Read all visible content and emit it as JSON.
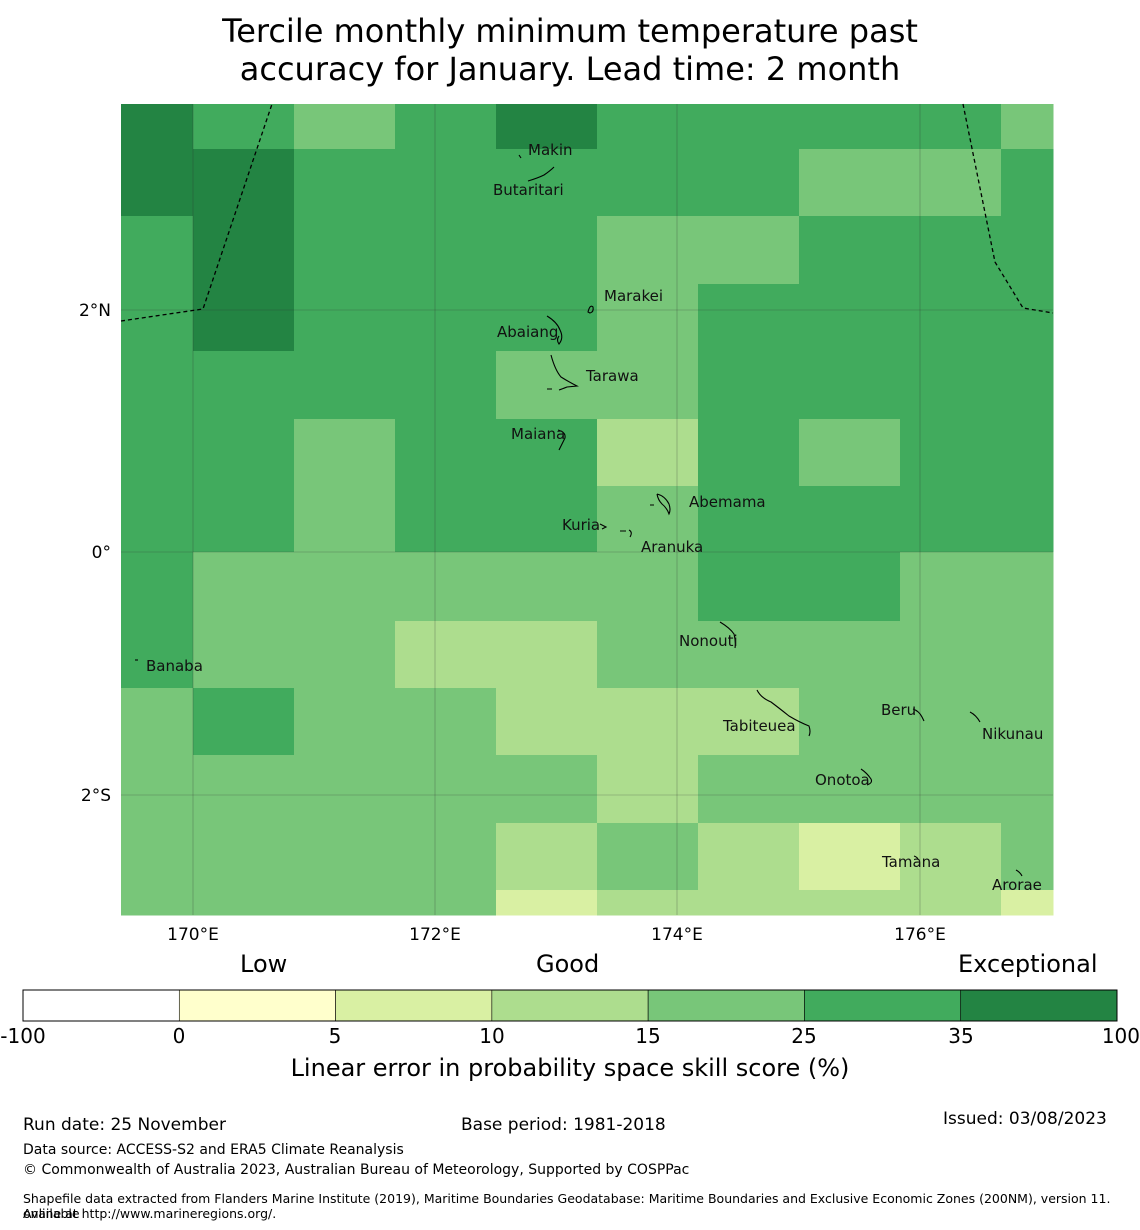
{
  "title": {
    "line1": "Tercile monthly minimum temperature past",
    "line2": "accuracy for January. Lead time: 2 month"
  },
  "map": {
    "lon_ticks": [
      "170°E",
      "172°E",
      "174°E",
      "176°E"
    ],
    "lat_ticks": [
      "2°N",
      "0°",
      "2°S"
    ],
    "grid_rows": [
      [
        "35-100",
        "25-35",
        "15-25",
        "25-35",
        "35-100",
        "25-35",
        "25-35",
        "25-35",
        "25-35",
        "15-25"
      ],
      [
        "35-100",
        "35-100",
        "25-35",
        "25-35",
        "25-35",
        "25-35",
        "25-35",
        "15-25",
        "15-25",
        "25-35"
      ],
      [
        "25-35",
        "35-100",
        "25-35",
        "25-35",
        "25-35",
        "15-25",
        "15-25",
        "25-35",
        "25-35",
        "25-35"
      ],
      [
        "25-35",
        "35-100",
        "25-35",
        "25-35",
        "25-35",
        "15-25",
        "25-35",
        "25-35",
        "25-35",
        "25-35"
      ],
      [
        "25-35",
        "25-35",
        "25-35",
        "25-35",
        "15-25",
        "15-25",
        "25-35",
        "25-35",
        "25-35",
        "25-35"
      ],
      [
        "25-35",
        "25-35",
        "15-25",
        "25-35",
        "25-35",
        "10-15",
        "25-35",
        "15-25",
        "25-35",
        "25-35"
      ],
      [
        "25-35",
        "25-35",
        "15-25",
        "25-35",
        "25-35",
        "15-25",
        "25-35",
        "25-35",
        "25-35",
        "25-35"
      ],
      [
        "25-35",
        "15-25",
        "15-25",
        "15-25",
        "15-25",
        "15-25",
        "25-35",
        "25-35",
        "15-25",
        "15-25"
      ],
      [
        "25-35",
        "15-25",
        "15-25",
        "10-15",
        "10-15",
        "15-25",
        "15-25",
        "15-25",
        "15-25",
        "15-25"
      ],
      [
        "15-25",
        "25-35",
        "15-25",
        "15-25",
        "10-15",
        "10-15",
        "10-15",
        "15-25",
        "15-25",
        "15-25"
      ],
      [
        "15-25",
        "15-25",
        "15-25",
        "15-25",
        "15-25",
        "10-15",
        "15-25",
        "15-25",
        "15-25",
        "15-25"
      ],
      [
        "15-25",
        "15-25",
        "15-25",
        "15-25",
        "10-15",
        "15-25",
        "10-15",
        "5-10",
        "10-15",
        "15-25"
      ],
      [
        "15-25",
        "15-25",
        "15-25",
        "15-25",
        "5-10",
        "10-15",
        "10-15",
        "10-15",
        "10-15",
        "5-10"
      ]
    ],
    "places": [
      {
        "name": "Makin"
      },
      {
        "name": "Butaritari"
      },
      {
        "name": "Marakei"
      },
      {
        "name": "Abaiang"
      },
      {
        "name": "Tarawa"
      },
      {
        "name": "Maiana"
      },
      {
        "name": "Abemama"
      },
      {
        "name": "Kuria"
      },
      {
        "name": "Aranuka"
      },
      {
        "name": "Nonouti"
      },
      {
        "name": "Banaba"
      },
      {
        "name": "Tabiteuea"
      },
      {
        "name": "Beru"
      },
      {
        "name": "Nikunau"
      },
      {
        "name": "Onotoa"
      },
      {
        "name": "Tamana"
      },
      {
        "name": "Arorae"
      }
    ]
  },
  "colorbar": {
    "categories": [
      "Low",
      "Good",
      "Exceptional"
    ],
    "ticks": [
      "-100",
      "0",
      "5",
      "10",
      "15",
      "25",
      "35",
      "100"
    ],
    "bins": [
      {
        "range": "-100-0",
        "color": "#ffffff"
      },
      {
        "range": "0-5",
        "color": "#ffffcc"
      },
      {
        "range": "5-10",
        "color": "#d9f0a3"
      },
      {
        "range": "10-15",
        "color": "#addd8e"
      },
      {
        "range": "15-25",
        "color": "#78c679"
      },
      {
        "range": "25-35",
        "color": "#41ab5d"
      },
      {
        "range": "35-100",
        "color": "#238443"
      }
    ],
    "label": "Linear error in probability space skill score (%)"
  },
  "footer": {
    "run_date": "Run date: 25 November",
    "base_period": "Base period: 1981-2018",
    "issued": "Issued: 03/08/2023",
    "data_source": "Data source: ACCESS-S2 and ERA5 Climate Reanalysis",
    "copyright": "© Commonwealth of Australia 2023, Australian Bureau of Meteorology, Supported by COSPPac",
    "shapefile_line1": "Shapefile data extracted from Flanders Marine Institute (2019), Maritime Boundaries Geodatabase: Maritime Boundaries and Exclusive Economic Zones (200NM), version 11. Available",
    "shapefile_line2": "online at http://www.marineregions.org/."
  }
}
